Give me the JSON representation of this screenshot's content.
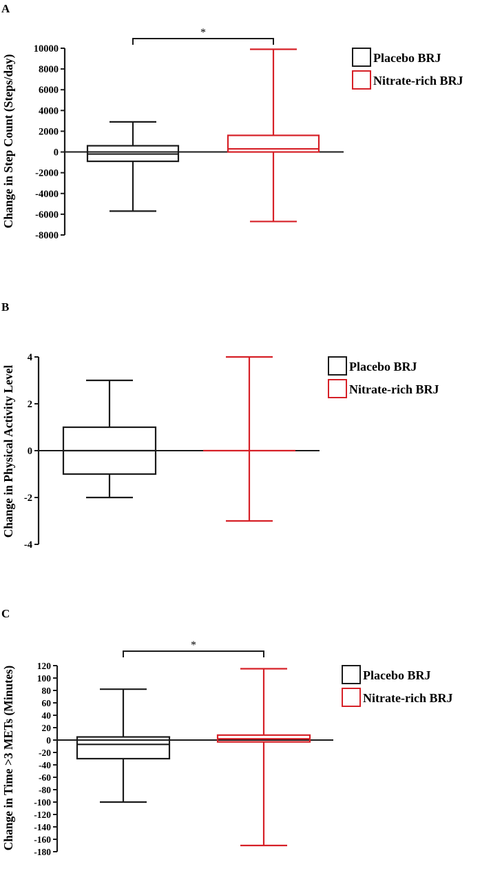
{
  "colors": {
    "placebo": "#1a1a1a",
    "nitrate": "#d62027",
    "axis": "#1a1a1a"
  },
  "chart_data": [
    {
      "panel": "A",
      "type": "boxplot",
      "ylabel": "Change in Step Count (Steps/day)",
      "ylim": [
        -8000,
        10000
      ],
      "yticks": [
        -8000,
        -6000,
        -4000,
        -2000,
        0,
        2000,
        4000,
        6000,
        8000,
        10000
      ],
      "tick_labels": [
        "-8000",
        "-6000",
        "-4000",
        "-2000",
        "0",
        "2000",
        "4000",
        "6000",
        "8000",
        "10000"
      ],
      "significance": "*",
      "legend": [
        "Placebo BRJ",
        "Nitrate-rich BRJ"
      ],
      "series": [
        {
          "name": "Placebo BRJ",
          "min": -5700,
          "q1": -900,
          "median": -200,
          "q3": 600,
          "max": 2900
        },
        {
          "name": "Nitrate-rich BRJ",
          "min": -6700,
          "q1": 0,
          "median": 300,
          "q3": 1600,
          "max": 9900
        }
      ]
    },
    {
      "panel": "B",
      "type": "boxplot",
      "ylabel": "Change in Physical Activity Level",
      "ylim": [
        -4,
        4
      ],
      "yticks": [
        -4,
        -2,
        0,
        2,
        4
      ],
      "tick_labels": [
        "-4",
        "-2",
        "0",
        "2",
        "4"
      ],
      "significance": "",
      "legend": [
        "Placebo BRJ",
        "Nitrate-rich BRJ"
      ],
      "series": [
        {
          "name": "Placebo BRJ",
          "min": -2,
          "q1": -1,
          "median": 0,
          "q3": 1,
          "max": 3
        },
        {
          "name": "Nitrate-rich BRJ",
          "min": -3,
          "q1": 0,
          "median": 0,
          "q3": 0,
          "max": 4
        }
      ]
    },
    {
      "panel": "C",
      "type": "boxplot",
      "ylabel": "Change in Time >3 METs (Minutes)",
      "ylim": [
        -180,
        120
      ],
      "yticks": [
        -180,
        -160,
        -140,
        -120,
        -100,
        -80,
        -60,
        -40,
        -20,
        0,
        20,
        40,
        60,
        80,
        100,
        120
      ],
      "tick_labels": [
        "-180",
        "-160",
        "-140",
        "-120",
        "-100",
        "-80",
        "-60",
        "-40",
        "-20",
        "0",
        "20",
        "40",
        "60",
        "80",
        "100",
        "120"
      ],
      "significance": "*",
      "legend": [
        "Placebo BRJ",
        "Nitrate-rich BRJ"
      ],
      "series": [
        {
          "name": "Placebo BRJ",
          "min": -100,
          "q1": -30,
          "median": -7,
          "q3": 5,
          "max": 82
        },
        {
          "name": "Nitrate-rich BRJ",
          "min": -170,
          "q1": -3,
          "median": 2,
          "q3": 8,
          "max": 115
        }
      ]
    }
  ]
}
